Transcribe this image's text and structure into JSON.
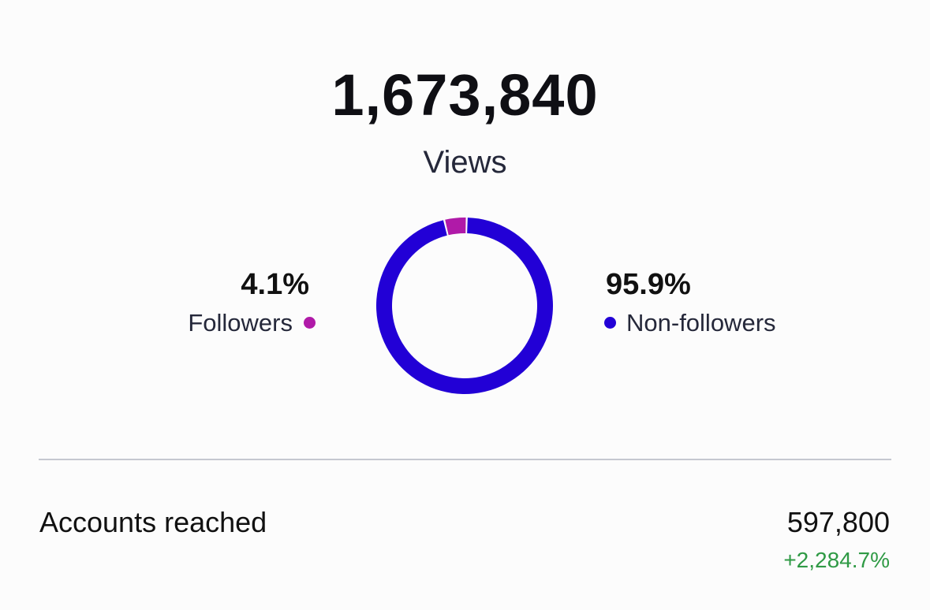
{
  "views": {
    "total": "1,673,840",
    "label": "Views"
  },
  "breakdown": {
    "followers": {
      "percent_text": "4.1%",
      "label": "Followers",
      "share": 4.1,
      "color": "#b01aa8"
    },
    "non_followers": {
      "percent_text": "95.9%",
      "label": "Non-followers",
      "share": 95.9,
      "color": "#2200d6"
    }
  },
  "accounts_reached": {
    "label": "Accounts reached",
    "value": "597,800",
    "change": "+2,284.7%",
    "change_color": "#2f9a45"
  }
}
